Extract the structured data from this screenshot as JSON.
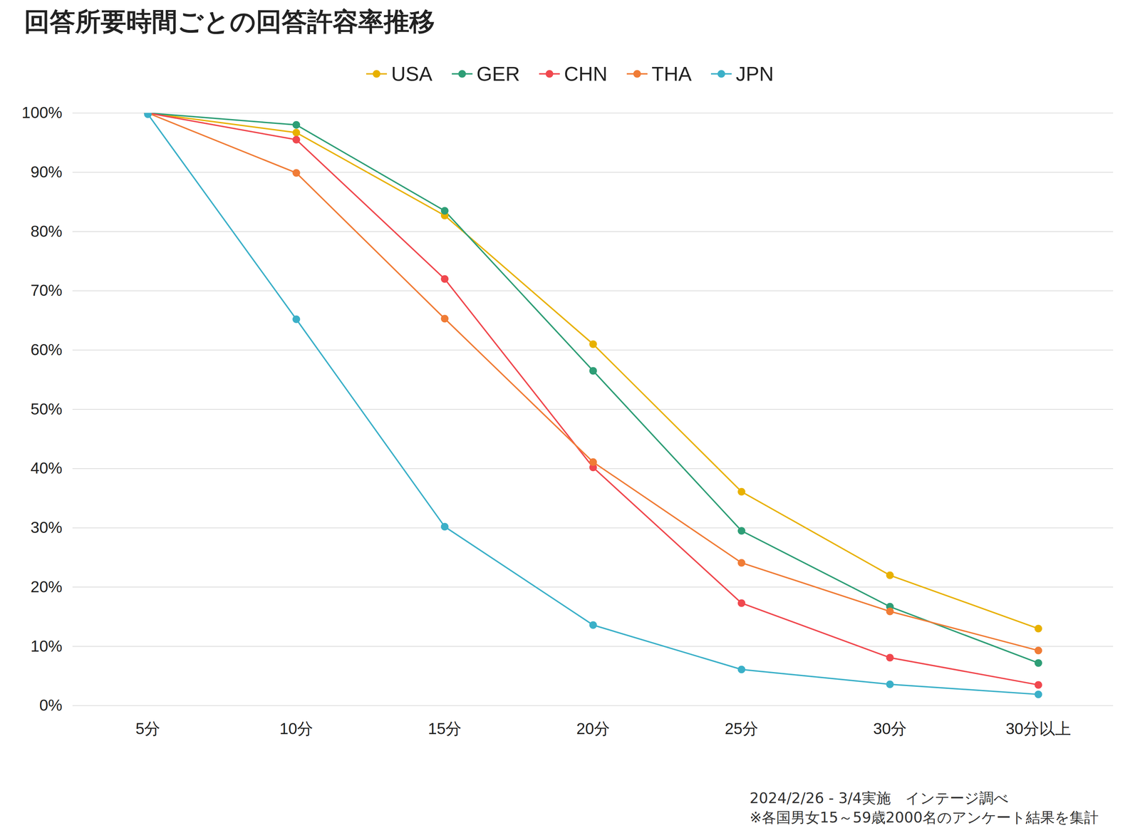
{
  "chart_data": {
    "type": "line",
    "title": "回答所要時間ごとの回答許容率推移",
    "categories": [
      "5分",
      "10分",
      "15分",
      "20分",
      "25分",
      "30分",
      "30分以上"
    ],
    "series": [
      {
        "name": "USA",
        "color": "#E8B100",
        "values": [
          100,
          96.7,
          82.7,
          61,
          36.1,
          22,
          13
        ]
      },
      {
        "name": "GER",
        "color": "#2E9E76",
        "values": [
          100,
          98,
          83.5,
          56.5,
          29.5,
          16.7,
          7.2
        ]
      },
      {
        "name": "CHN",
        "color": "#F0484E",
        "values": [
          100,
          95.5,
          72,
          40.2,
          17.3,
          8.1,
          3.5
        ]
      },
      {
        "name": "THA",
        "color": "#F07C36",
        "values": [
          100,
          89.9,
          65.3,
          41.1,
          24.1,
          15.9,
          9.3
        ]
      },
      {
        "name": "JPN",
        "color": "#3BB0C8",
        "values": [
          99.8,
          65.2,
          30.2,
          13.6,
          6.1,
          3.6,
          1.9
        ]
      }
    ],
    "ylim": [
      0,
      100
    ],
    "yticks": [
      {
        "value": 0,
        "label": "0%"
      },
      {
        "value": 10,
        "label": "10%"
      },
      {
        "value": 20,
        "label": "20%"
      },
      {
        "value": 30,
        "label": "30%"
      },
      {
        "value": 40,
        "label": "40%"
      },
      {
        "value": 50,
        "label": "50%"
      },
      {
        "value": 60,
        "label": "60%"
      },
      {
        "value": 70,
        "label": "70%"
      },
      {
        "value": 80,
        "label": "80%"
      },
      {
        "value": 90,
        "label": "90%"
      },
      {
        "value": 100,
        "label": "100%"
      }
    ],
    "grid": true,
    "legend": "top",
    "marker": "circle",
    "line_style": "solid",
    "caption": [
      "2024/2/26 - 3/4実施　インテージ調べ",
      "※各国男女15～59歳2000名のアンケート結果を集計"
    ]
  }
}
